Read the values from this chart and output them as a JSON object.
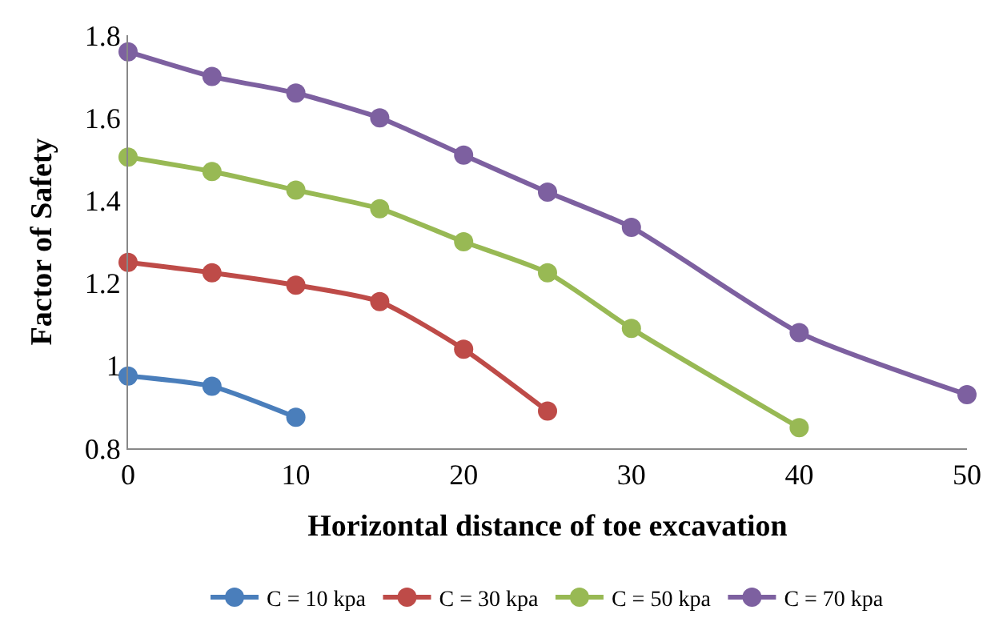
{
  "chart_data": {
    "type": "line",
    "xlabel": "Horizontal distance of toe excavation",
    "ylabel": "Factor of Safety",
    "xlim": [
      0,
      50
    ],
    "xticks": [
      0,
      10,
      20,
      30,
      40,
      50
    ],
    "ylim": [
      0.8,
      1.8
    ],
    "yticks": [
      0.8,
      1,
      1.2,
      1.4,
      1.6,
      1.8
    ],
    "legend": "bottom",
    "marker": "circle",
    "line_style": "solid",
    "series": [
      {
        "name": "C = 10 kpa",
        "color": "#4a7ebb",
        "x": [
          0,
          5,
          10
        ],
        "values": [
          0.975,
          0.95,
          0.875
        ]
      },
      {
        "name": "C = 30 kpa",
        "color": "#be4b48",
        "x": [
          0,
          5,
          10,
          15,
          20,
          25
        ],
        "values": [
          1.25,
          1.225,
          1.195,
          1.155,
          1.04,
          0.89
        ]
      },
      {
        "name": "C = 50 kpa",
        "color": "#98b954",
        "x": [
          0,
          5,
          10,
          15,
          20,
          25,
          30,
          40
        ],
        "values": [
          1.505,
          1.47,
          1.425,
          1.38,
          1.3,
          1.225,
          1.09,
          0.85
        ]
      },
      {
        "name": "C = 70 kpa",
        "color": "#7d60a0",
        "x": [
          0,
          5,
          10,
          15,
          20,
          25,
          30,
          40,
          50
        ],
        "values": [
          1.76,
          1.7,
          1.66,
          1.6,
          1.51,
          1.42,
          1.335,
          1.08,
          0.93
        ]
      }
    ]
  }
}
